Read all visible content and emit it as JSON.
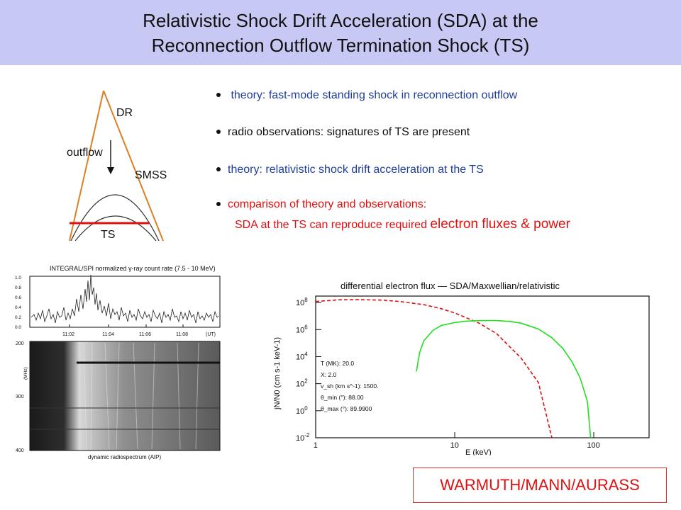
{
  "title": {
    "line1": "Relativistic Shock Drift Acceleration (SDA) at the",
    "line2": "Reconnection Outflow Termination Shock (TS)"
  },
  "bullets": [
    {
      "text": "theory: fast-mode standing shock in reconnection outflow",
      "color": "#1f3f9c"
    },
    {
      "text": "radio observations: signatures of TS are present",
      "color": "#111111"
    },
    {
      "text": "theory: relativistic shock drift acceleration at the TS",
      "color": "#1f3f9c"
    },
    {
      "text": "comparison of theory and observations:",
      "color": "#e01010"
    }
  ],
  "bullet_sub": {
    "prefix": "SDA at the TS can reproduce required ",
    "emphasis": "electron fluxes & power"
  },
  "diagram": {
    "labels": {
      "dr": "DR",
      "outflow": "outflow",
      "smss": "SMSS",
      "ts": "TS"
    },
    "colors": {
      "current_sheet": "#d98026",
      "shock": "#e01010",
      "arc": "#333333"
    }
  },
  "gamma_panel": {
    "title": "INTEGRAL/SPI normalized γ-ray count rate (7.5 - 10 MeV)",
    "y_ticks": [
      "1.0",
      "0.8",
      "0.6",
      "0.4",
      "0.2",
      "0.0"
    ],
    "x_ticks": [
      "11:02",
      "11:04",
      "11:06",
      "11:08",
      "(UT)"
    ]
  },
  "radio_panel": {
    "y_ticks": [
      "200",
      "300",
      "400"
    ],
    "ylabel": "(MHz)",
    "caption": "dynamic radiospectrum (AIP)"
  },
  "chart_data": {
    "type": "line",
    "title": "differential electron flux — SDA/Maxwellian/relativistic",
    "xlabel": "E (keV)",
    "ylabel": "jN/N0 (cm s-1 keV-1)",
    "x_scale": "log",
    "y_scale": "log",
    "xlim": [
      1,
      250
    ],
    "ylim": [
      0.01,
      300000000
    ],
    "x_ticks": [
      "1",
      "10",
      "100"
    ],
    "y_ticks": [
      "10^8",
      "10^6",
      "10^4",
      "10^2",
      "10^0",
      "10^-2"
    ],
    "params": [
      "T (MK): 20.0",
      "X: 2.0",
      "v_sh (km s^-1): 1500.",
      "θ_min (°): 88.00",
      "θ_max (°): 89.9900"
    ],
    "series": [
      {
        "style": "dashed",
        "color": "#e01010",
        "x": [
          1,
          1.5,
          2,
          3,
          4,
          6,
          8,
          10,
          15,
          20,
          30,
          40,
          50
        ],
        "y": [
          120000000,
          160000000,
          165000000,
          150000000,
          120000000,
          70000000,
          35000000,
          17000000,
          3000000,
          500000,
          8000,
          120,
          0.01
        ]
      },
      {
        "style": "solid",
        "color": "#22dd22",
        "x": [
          5.3,
          5.6,
          6,
          7,
          8,
          10,
          12,
          15,
          18,
          20,
          25,
          30,
          40,
          50,
          60,
          70,
          80,
          90,
          95
        ],
        "y": [
          800,
          20000,
          150000,
          900000,
          2000000,
          3300000,
          4200000,
          4600000,
          4700000,
          4600000,
          4000000,
          3000000,
          1100000,
          250000,
          40000,
          4000,
          250,
          5,
          0.01
        ]
      }
    ]
  },
  "credit": "WARMUTH/MANN/AURASS"
}
